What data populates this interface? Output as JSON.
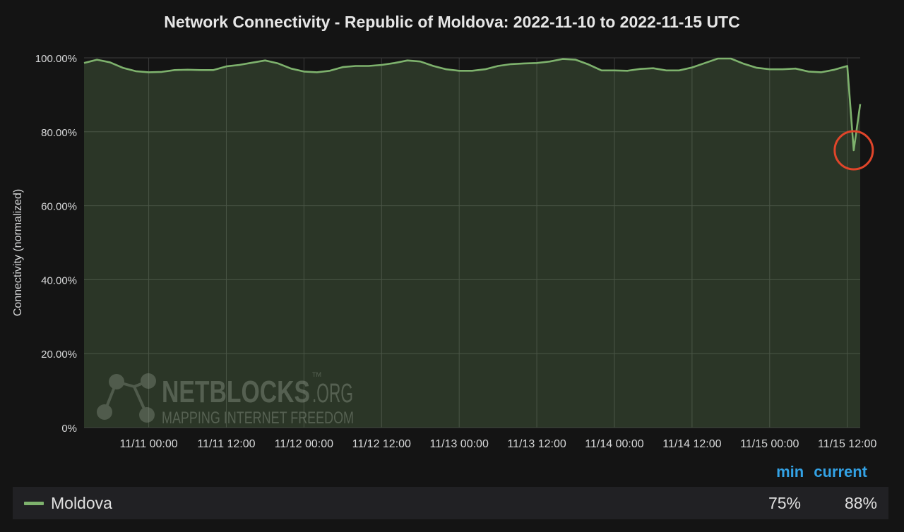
{
  "chart_data": {
    "type": "area",
    "title": "Network Connectivity - Republic of Moldova: 2022-11-10 to 2022-11-15 UTC",
    "ylabel": "Connectivity (normalized)",
    "xlabel": "",
    "ylim": [
      0,
      100
    ],
    "yticks": [
      "0%",
      "20.00%",
      "40.00%",
      "60.00%",
      "80.00%",
      "100.00%"
    ],
    "xlim": [
      "2022-11-10 14:00",
      "2022-11-15 14:00"
    ],
    "xticks": [
      {
        "t": "2022-11-11 00:00",
        "label": "11/11 00:00"
      },
      {
        "t": "2022-11-11 12:00",
        "label": "11/11 12:00"
      },
      {
        "t": "2022-11-12 00:00",
        "label": "11/12 00:00"
      },
      {
        "t": "2022-11-12 12:00",
        "label": "11/12 12:00"
      },
      {
        "t": "2022-11-13 00:00",
        "label": "11/13 00:00"
      },
      {
        "t": "2022-11-13 12:00",
        "label": "11/13 12:00"
      },
      {
        "t": "2022-11-14 00:00",
        "label": "11/14 00:00"
      },
      {
        "t": "2022-11-14 12:00",
        "label": "11/14 12:00"
      },
      {
        "t": "2022-11-15 00:00",
        "label": "11/15 00:00"
      },
      {
        "t": "2022-11-15 12:00",
        "label": "11/15 12:00"
      }
    ],
    "grid": true,
    "legend_position": "bottom",
    "series": [
      {
        "name": "Moldova",
        "color": "#7eb26d",
        "x": [
          "2022-11-10 14:00",
          "2022-11-10 16:00",
          "2022-11-10 18:00",
          "2022-11-10 20:00",
          "2022-11-10 22:00",
          "2022-11-11 00:00",
          "2022-11-11 02:00",
          "2022-11-11 04:00",
          "2022-11-11 06:00",
          "2022-11-11 08:00",
          "2022-11-11 10:00",
          "2022-11-11 12:00",
          "2022-11-11 14:00",
          "2022-11-11 16:00",
          "2022-11-11 18:00",
          "2022-11-11 20:00",
          "2022-11-11 22:00",
          "2022-11-12 00:00",
          "2022-11-12 02:00",
          "2022-11-12 04:00",
          "2022-11-12 06:00",
          "2022-11-12 08:00",
          "2022-11-12 10:00",
          "2022-11-12 12:00",
          "2022-11-12 14:00",
          "2022-11-12 16:00",
          "2022-11-12 18:00",
          "2022-11-12 20:00",
          "2022-11-12 22:00",
          "2022-11-13 00:00",
          "2022-11-13 02:00",
          "2022-11-13 04:00",
          "2022-11-13 06:00",
          "2022-11-13 08:00",
          "2022-11-13 10:00",
          "2022-11-13 12:00",
          "2022-11-13 14:00",
          "2022-11-13 16:00",
          "2022-11-13 18:00",
          "2022-11-13 20:00",
          "2022-11-13 22:00",
          "2022-11-14 00:00",
          "2022-11-14 02:00",
          "2022-11-14 04:00",
          "2022-11-14 06:00",
          "2022-11-14 08:00",
          "2022-11-14 10:00",
          "2022-11-14 12:00",
          "2022-11-14 14:00",
          "2022-11-14 16:00",
          "2022-11-14 18:00",
          "2022-11-14 20:00",
          "2022-11-14 22:00",
          "2022-11-15 00:00",
          "2022-11-15 02:00",
          "2022-11-15 04:00",
          "2022-11-15 06:00",
          "2022-11-15 08:00",
          "2022-11-15 10:00",
          "2022-11-15 12:00",
          "2022-11-15 13:00",
          "2022-11-15 14:00"
        ],
        "values": [
          98.6,
          99.5,
          98.8,
          97.3,
          96.4,
          96.1,
          96.2,
          96.7,
          96.8,
          96.7,
          96.7,
          97.7,
          98.1,
          98.7,
          99.3,
          98.5,
          97.1,
          96.3,
          96.1,
          96.5,
          97.5,
          97.8,
          97.8,
          98.1,
          98.6,
          99.3,
          99.0,
          97.8,
          96.9,
          96.5,
          96.5,
          96.9,
          97.8,
          98.3,
          98.5,
          98.6,
          99.0,
          99.7,
          99.5,
          98.2,
          96.6,
          96.6,
          96.5,
          97.0,
          97.2,
          96.6,
          96.6,
          97.4,
          98.6,
          99.8,
          99.8,
          98.4,
          97.3,
          96.9,
          96.9,
          97.1,
          96.3,
          96.1,
          96.8,
          97.8,
          75.0,
          87.5
        ]
      }
    ],
    "annotations": [
      {
        "type": "circle",
        "x": "2022-11-15 13:00",
        "y": 75.0,
        "color": "#e0452a"
      }
    ]
  },
  "watermark": {
    "brand": "NETBLOCKS",
    "suffix": ".ORG",
    "tm": "TM",
    "tagline": "MAPPING INTERNET FREEDOM"
  },
  "stats": {
    "min_label": "min",
    "current_label": "current",
    "rows": [
      {
        "name": "Moldova",
        "min": "75%",
        "current": "88%"
      }
    ]
  }
}
